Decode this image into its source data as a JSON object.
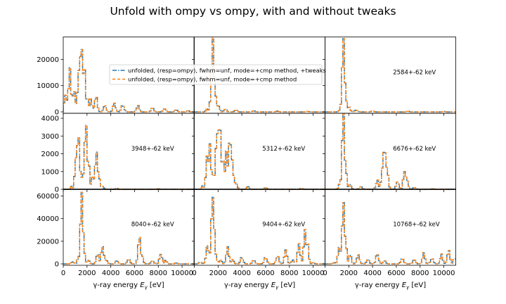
{
  "title": "Unfold with ompy vs ompy, with and without tweaks",
  "colors": {
    "unfolded_tweaks": "#1f77b4",
    "unfolded_plain": "#ff7f0e",
    "axes": "#000000"
  },
  "chart_data": {
    "type": "line",
    "layout": "3x3 grid of step histograms",
    "drawstyle": "steps-mid",
    "grid": false,
    "legend": {
      "placement": "upper panel row, centered",
      "entries": [
        "unfolded, (resp=ompy), fwhm=unf, mode=+cmp method, +tweaks",
        "unfolded, (resp=ompy), fwhm=unf, mode=+cmp method"
      ]
    },
    "xlabel": "γ-ray energy E_γ [eV]",
    "xlim": [
      0,
      11000
    ],
    "x_ticks": [
      0,
      2000,
      4000,
      6000,
      8000,
      10000
    ],
    "x_tick_labels": [
      "0",
      "2000",
      "4000",
      "6000",
      "8000",
      "10000"
    ],
    "rows": [
      {
        "ylim": [
          0,
          28000
        ],
        "y_ticks": [
          0,
          10000,
          20000
        ],
        "y_tick_labels": [
          "0",
          "10000",
          "20000"
        ]
      },
      {
        "ylim": [
          0,
          4200
        ],
        "y_ticks": [
          0,
          1000,
          2000,
          3000,
          4000
        ],
        "y_tick_labels": [
          "0",
          "1000",
          "2000",
          "3000",
          "4000"
        ]
      },
      {
        "ylim": [
          0,
          65000
        ],
        "y_ticks": [
          0,
          20000,
          40000,
          60000
        ],
        "y_tick_labels": [
          "0",
          "20000",
          "40000",
          "60000"
        ]
      }
    ],
    "panels": [
      {
        "label": "",
        "row": 0,
        "col": 0,
        "peaks": [
          [
            50,
            0
          ],
          [
            200,
            7000
          ],
          [
            550,
            15500
          ],
          [
            900,
            9000
          ],
          [
            1200,
            7500
          ],
          [
            1400,
            20500
          ],
          [
            1550,
            27500
          ],
          [
            1750,
            17500
          ],
          [
            2000,
            5500
          ],
          [
            2300,
            4500
          ],
          [
            2750,
            6500
          ],
          [
            3500,
            2500
          ],
          [
            4300,
            3500
          ],
          [
            5000,
            2800
          ],
          [
            6300,
            2500
          ],
          [
            7500,
            1500
          ],
          [
            8500,
            1200
          ],
          [
            9500,
            800
          ],
          [
            10500,
            400
          ]
        ]
      },
      {
        "label": "",
        "row": 0,
        "col": 1,
        "peaks": [
          [
            1100,
            1200
          ],
          [
            1400,
            5000
          ],
          [
            1550,
            27500
          ],
          [
            1700,
            9000
          ],
          [
            2000,
            2500
          ],
          [
            2600,
            1000
          ],
          [
            3500,
            700
          ],
          [
            5000,
            400
          ],
          [
            7000,
            300
          ],
          [
            9500,
            250
          ]
        ]
      },
      {
        "label": "2584+-62 keV",
        "row": 0,
        "col": 2,
        "peaks": [
          [
            1300,
            1000
          ],
          [
            1550,
            27500
          ],
          [
            1700,
            8000
          ],
          [
            2000,
            2200
          ],
          [
            2600,
            700
          ],
          [
            4000,
            300
          ],
          [
            7000,
            250
          ],
          [
            10000,
            200
          ]
        ]
      },
      {
        "label": "3948+-62 keV",
        "row": 1,
        "col": 0,
        "peaks": [
          [
            700,
            150
          ],
          [
            1100,
            2000
          ],
          [
            1250,
            3200
          ],
          [
            1450,
            1200
          ],
          [
            1700,
            900
          ],
          [
            1900,
            4050
          ],
          [
            2100,
            1800
          ],
          [
            2500,
            700
          ],
          [
            2800,
            2100
          ],
          [
            3000,
            800
          ],
          [
            3300,
            150
          ],
          [
            4500,
            50
          ],
          [
            8000,
            30
          ]
        ]
      },
      {
        "label": "5312+-62 keV",
        "row": 1,
        "col": 1,
        "peaks": [
          [
            700,
            200
          ],
          [
            1100,
            1900
          ],
          [
            1300,
            2400
          ],
          [
            1600,
            1000
          ],
          [
            1900,
            3300
          ],
          [
            2100,
            4000
          ],
          [
            2400,
            2000
          ],
          [
            2700,
            2200
          ],
          [
            3000,
            3000
          ],
          [
            3200,
            1500
          ],
          [
            3500,
            400
          ],
          [
            4500,
            150
          ],
          [
            6000,
            80
          ],
          [
            9000,
            50
          ]
        ]
      },
      {
        "label": "6676+-62 keV",
        "row": 1,
        "col": 2,
        "peaks": [
          [
            1300,
            500
          ],
          [
            1550,
            4100
          ],
          [
            1700,
            1500
          ],
          [
            2100,
            250
          ],
          [
            3000,
            150
          ],
          [
            4400,
            500
          ],
          [
            4850,
            1300
          ],
          [
            5000,
            2500
          ],
          [
            5200,
            1300
          ],
          [
            6100,
            450
          ],
          [
            6700,
            1150
          ],
          [
            6900,
            500
          ],
          [
            7500,
            100
          ],
          [
            9000,
            30
          ]
        ]
      },
      {
        "label": "8040+-62 keV",
        "row": 2,
        "col": 0,
        "peaks": [
          [
            800,
            2000
          ],
          [
            1300,
            6000
          ],
          [
            1550,
            62000
          ],
          [
            1700,
            15000
          ],
          [
            2100,
            3000
          ],
          [
            2900,
            9000
          ],
          [
            3300,
            16000
          ],
          [
            3600,
            4000
          ],
          [
            4500,
            3000
          ],
          [
            5500,
            4000
          ],
          [
            6400,
            24000
          ],
          [
            6600,
            8000
          ],
          [
            7500,
            3000
          ],
          [
            8200,
            8000
          ],
          [
            8600,
            3000
          ],
          [
            9500,
            700
          ]
        ]
      },
      {
        "label": "9404+-62 keV",
        "row": 2,
        "col": 1,
        "peaks": [
          [
            500,
            1500
          ],
          [
            1100,
            16000
          ],
          [
            1300,
            9000
          ],
          [
            1550,
            62000
          ],
          [
            1800,
            8000
          ],
          [
            2200,
            3500
          ],
          [
            2800,
            15000
          ],
          [
            3200,
            4000
          ],
          [
            4000,
            6000
          ],
          [
            5000,
            3000
          ],
          [
            6000,
            6000
          ],
          [
            7000,
            7000
          ],
          [
            7700,
            12000
          ],
          [
            8300,
            3500
          ],
          [
            8800,
            18000
          ],
          [
            9300,
            29000
          ],
          [
            9500,
            18000
          ],
          [
            10000,
            1000
          ]
        ]
      },
      {
        "label": "10768+-62 keV",
        "row": 2,
        "col": 2,
        "peaks": [
          [
            800,
            1000
          ],
          [
            1200,
            17000
          ],
          [
            1400,
            12000
          ],
          [
            1550,
            62000
          ],
          [
            1700,
            20000
          ],
          [
            2100,
            8000
          ],
          [
            2800,
            8000
          ],
          [
            3600,
            4000
          ],
          [
            4400,
            9000
          ],
          [
            5000,
            3000
          ],
          [
            6500,
            5000
          ],
          [
            7500,
            4000
          ],
          [
            8300,
            9000
          ],
          [
            9000,
            5000
          ],
          [
            9800,
            8000
          ],
          [
            10400,
            12000
          ],
          [
            10900,
            5000
          ]
        ]
      }
    ]
  }
}
